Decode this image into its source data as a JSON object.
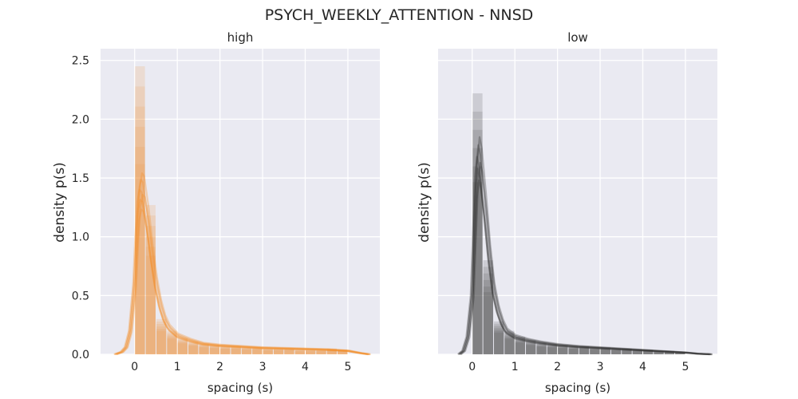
{
  "figure": {
    "suptitle": "PSYCH_WEEKLY_ATTENTION - NNSD"
  },
  "chart_data": [
    {
      "type": "histogram+kde",
      "title": "high",
      "xlabel": "spacing (s)",
      "ylabel": "density p(s)",
      "xlim": [
        -0.8,
        5.75
      ],
      "ylim": [
        0,
        2.6
      ],
      "xticks": [
        0,
        1,
        2,
        3,
        4,
        5
      ],
      "yticks": [
        0.0,
        0.5,
        1.0,
        1.5,
        2.0,
        2.5
      ],
      "y_tick_labels": [
        "0.0",
        "0.5",
        "1.0",
        "1.5",
        "2.0",
        "2.5"
      ],
      "grid": true,
      "color": "#f28e2b",
      "bin_width": 0.25,
      "bins": [
        {
          "x0": 0.0,
          "density": 2.45
        },
        {
          "x0": 0.25,
          "density": 1.27
        },
        {
          "x0": 0.5,
          "density": 0.3
        },
        {
          "x0": 0.75,
          "density": 0.2
        },
        {
          "x0": 1.0,
          "density": 0.14
        },
        {
          "x0": 1.25,
          "density": 0.11
        },
        {
          "x0": 1.5,
          "density": 0.09
        },
        {
          "x0": 1.75,
          "density": 0.08
        },
        {
          "x0": 2.0,
          "density": 0.07
        },
        {
          "x0": 2.25,
          "density": 0.07
        },
        {
          "x0": 2.5,
          "density": 0.06
        },
        {
          "x0": 2.75,
          "density": 0.06
        },
        {
          "x0": 3.0,
          "density": 0.05
        },
        {
          "x0": 3.25,
          "density": 0.05
        },
        {
          "x0": 3.5,
          "density": 0.05
        },
        {
          "x0": 3.75,
          "density": 0.04
        },
        {
          "x0": 4.0,
          "density": 0.04
        },
        {
          "x0": 4.25,
          "density": 0.04
        },
        {
          "x0": 4.5,
          "density": 0.05
        },
        {
          "x0": 4.75,
          "density": 0.04
        }
      ],
      "kde": {
        "x": [
          -0.45,
          -0.3,
          -0.2,
          -0.1,
          0.0,
          0.05,
          0.1,
          0.15,
          0.2,
          0.3,
          0.4,
          0.5,
          0.6,
          0.7,
          0.8,
          1.0,
          1.3,
          1.6,
          2.0,
          2.5,
          3.0,
          3.5,
          4.0,
          4.5,
          5.0,
          5.3,
          5.5
        ],
        "y": [
          0.0,
          0.02,
          0.06,
          0.2,
          0.6,
          1.0,
          1.3,
          1.4,
          1.38,
          1.15,
          0.85,
          0.6,
          0.42,
          0.3,
          0.23,
          0.16,
          0.12,
          0.09,
          0.075,
          0.065,
          0.055,
          0.05,
          0.045,
          0.04,
          0.03,
          0.01,
          0.0
        ]
      }
    },
    {
      "type": "histogram+kde",
      "title": "low",
      "xlabel": "spacing (s)",
      "ylabel": "density p(s)",
      "xlim": [
        -0.8,
        5.75
      ],
      "ylim": [
        0,
        2.6
      ],
      "xticks": [
        0,
        1,
        2,
        3,
        4,
        5
      ],
      "yticks": [],
      "y_tick_labels": [],
      "grid": true,
      "color": "#333333",
      "bin_width": 0.25,
      "bins": [
        {
          "x0": 0.0,
          "density": 2.22
        },
        {
          "x0": 0.25,
          "density": 0.8
        },
        {
          "x0": 0.5,
          "density": 0.28
        },
        {
          "x0": 0.75,
          "density": 0.2
        },
        {
          "x0": 1.0,
          "density": 0.15
        },
        {
          "x0": 1.25,
          "density": 0.12
        },
        {
          "x0": 1.5,
          "density": 0.1
        },
        {
          "x0": 1.75,
          "density": 0.09
        },
        {
          "x0": 2.0,
          "density": 0.08
        },
        {
          "x0": 2.25,
          "density": 0.07
        },
        {
          "x0": 2.5,
          "density": 0.07
        },
        {
          "x0": 2.75,
          "density": 0.06
        },
        {
          "x0": 3.0,
          "density": 0.06
        },
        {
          "x0": 3.25,
          "density": 0.05
        },
        {
          "x0": 3.5,
          "density": 0.05
        },
        {
          "x0": 3.75,
          "density": 0.04
        },
        {
          "x0": 4.0,
          "density": 0.04
        },
        {
          "x0": 4.25,
          "density": 0.03
        },
        {
          "x0": 4.5,
          "density": 0.03
        },
        {
          "x0": 4.75,
          "density": 0.02
        }
      ],
      "kde": {
        "x": [
          -0.3,
          -0.2,
          -0.1,
          0.0,
          0.05,
          0.1,
          0.15,
          0.2,
          0.3,
          0.4,
          0.5,
          0.6,
          0.7,
          0.8,
          1.0,
          1.3,
          1.6,
          2.0,
          2.5,
          3.0,
          3.5,
          4.0,
          4.5,
          5.0,
          5.3,
          5.6
        ],
        "y": [
          0.0,
          0.03,
          0.15,
          0.5,
          1.0,
          1.5,
          1.68,
          1.6,
          1.25,
          0.85,
          0.55,
          0.38,
          0.27,
          0.2,
          0.15,
          0.12,
          0.1,
          0.08,
          0.065,
          0.055,
          0.045,
          0.035,
          0.025,
          0.015,
          0.005,
          0.0
        ]
      }
    }
  ]
}
